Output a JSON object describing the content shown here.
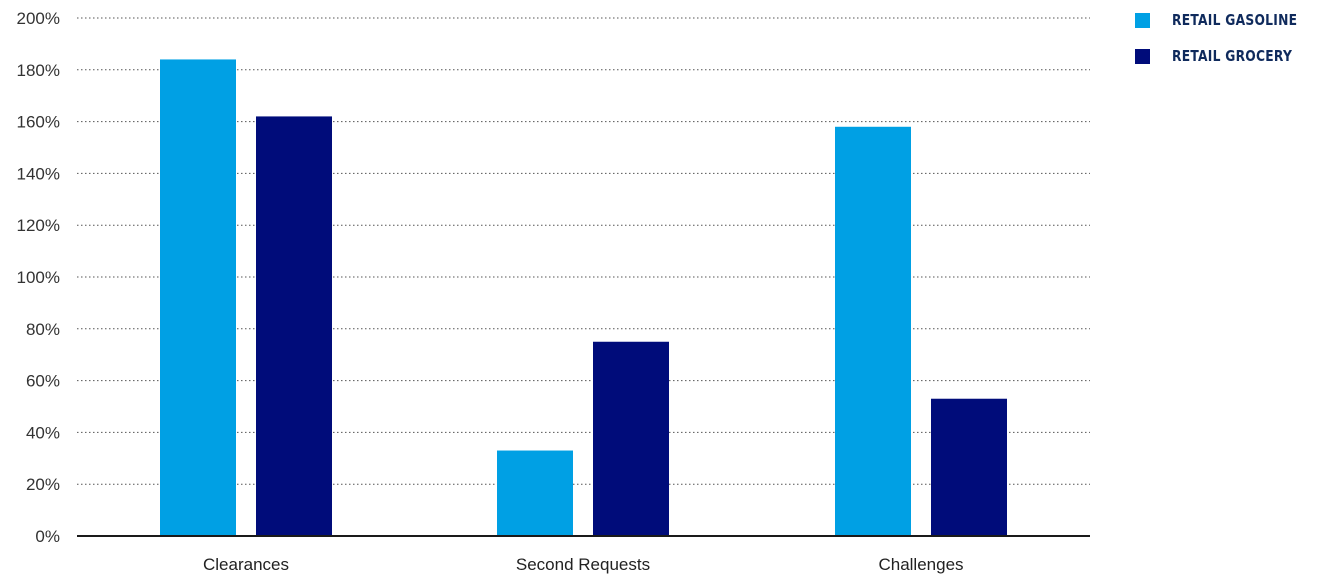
{
  "chart_data": {
    "type": "bar",
    "categories": [
      "Clearances",
      "Second Requests",
      "Challenges"
    ],
    "series": [
      {
        "name": "RETAIL GASOLINE",
        "color": "#00a0e4",
        "values": [
          184,
          33,
          158
        ]
      },
      {
        "name": "RETAIL GROCERY",
        "color": "#000c7a",
        "values": [
          162,
          75,
          53
        ]
      }
    ],
    "ylim": [
      0,
      200
    ],
    "yticks": [
      "0%",
      "20%",
      "40%",
      "60%",
      "80%",
      "100%",
      "120%",
      "140%",
      "160%",
      "180%",
      "200%"
    ],
    "title": "",
    "xlabel": "",
    "ylabel": "",
    "grid": true,
    "legend_position": "top-right"
  }
}
